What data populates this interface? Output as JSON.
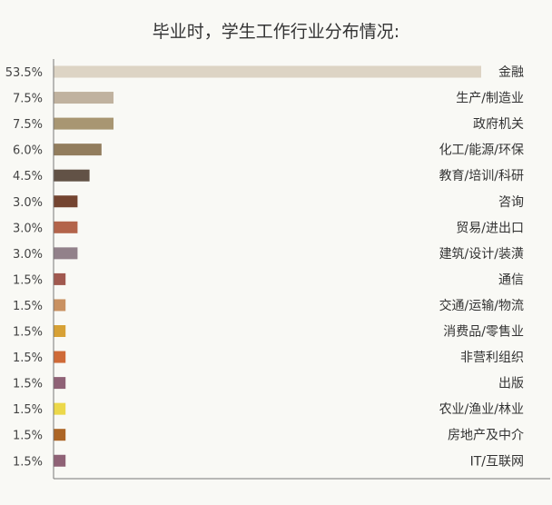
{
  "chart_data": {
    "type": "bar",
    "orientation": "horizontal",
    "title": "毕业时，学生工作行业分布情况:",
    "unit": "%",
    "categories": [
      "金融",
      "生产/制造业",
      "政府机关",
      "化工/能源/环保",
      "教育/培训/科研",
      "咨询",
      "贸易/进出口",
      "建筑/设计/装潢",
      "通信",
      "交通/运输/物流",
      "消费品/零售业",
      "非营利组织",
      "出版",
      "农业/渔业/林业",
      "房地产及中介",
      "IT/互联网"
    ],
    "values": [
      53.5,
      7.5,
      7.5,
      6.0,
      4.5,
      3.0,
      3.0,
      3.0,
      1.5,
      1.5,
      1.5,
      1.5,
      1.5,
      1.5,
      1.5,
      1.5
    ],
    "colors": [
      "#ddd4c4",
      "#c0b29f",
      "#a89672",
      "#927d5d",
      "#625246",
      "#744430",
      "#b3644a",
      "#92818a",
      "#a1594f",
      "#c99161",
      "#d7a135",
      "#cf6a37",
      "#8f6276",
      "#ecd84a",
      "#ac6525",
      "#8f6276"
    ],
    "xlim": [
      0,
      53.5
    ],
    "grid": false,
    "legend": "none"
  }
}
